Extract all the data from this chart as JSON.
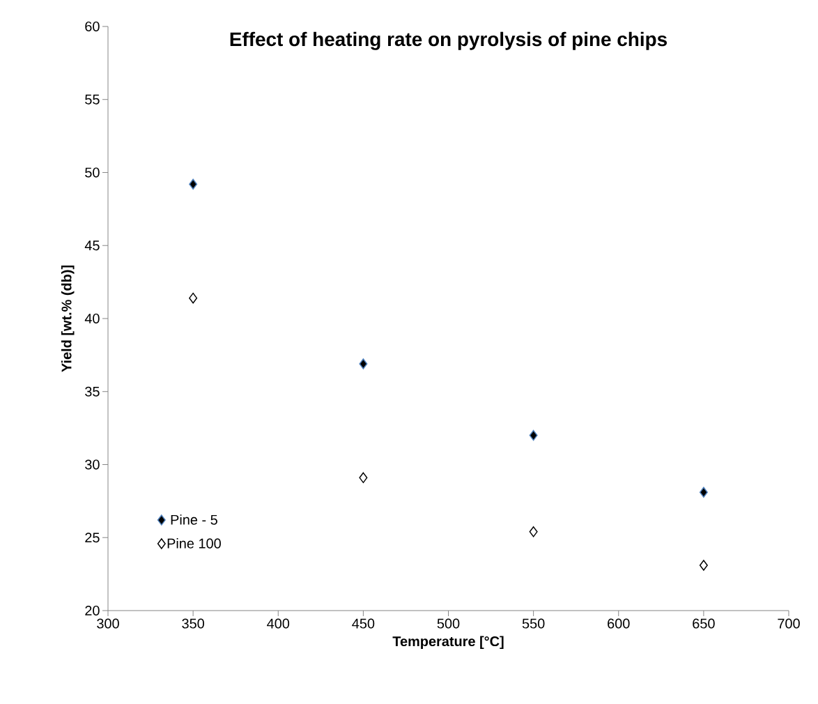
{
  "chart_data": {
    "type": "scatter",
    "title": "Effect of heating rate on pyrolysis of pine chips",
    "xlabel": "Temperature [°C]",
    "ylabel": "Yield [wt.% (db)]",
    "x": [
      350,
      450,
      550,
      650
    ],
    "series": [
      {
        "name": "Pine - 5",
        "color": "#000000",
        "values": [
          49.2,
          36.9,
          32.0,
          28.1
        ]
      },
      {
        "name": "Pine 100",
        "color": "#ffffff",
        "values": [
          41.4,
          29.1,
          25.4,
          23.1
        ]
      }
    ],
    "xlim": [
      300,
      700
    ],
    "xticks": [
      300,
      350,
      400,
      450,
      500,
      550,
      600,
      650,
      700
    ],
    "ylim": [
      20,
      60
    ],
    "yticks": [
      20,
      25,
      30,
      35,
      40,
      45,
      50,
      55,
      60
    ],
    "grid": false,
    "legend": "bottom left",
    "marker": "diamond"
  }
}
